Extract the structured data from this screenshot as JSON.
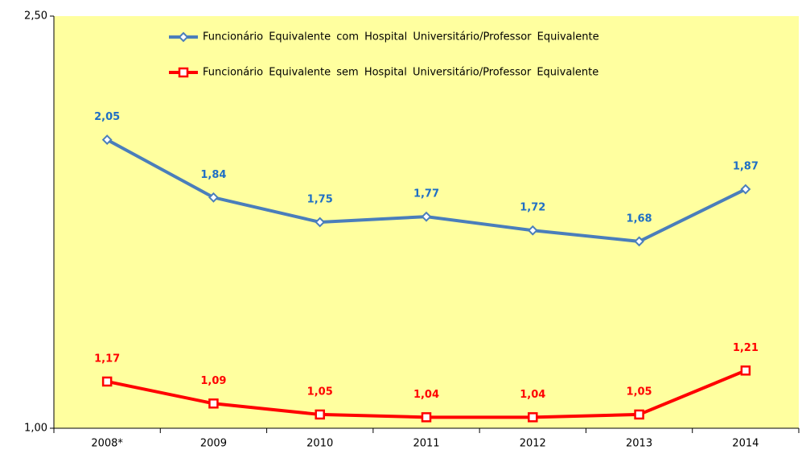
{
  "chart_data": {
    "type": "line",
    "categories": [
      "2008*",
      "2009",
      "2010",
      "2011",
      "2012",
      "2013",
      "2014"
    ],
    "series": [
      {
        "name": "Funcionário Equivalente com Hospital Universitário/Professor Equivalente",
        "color": "#4a7ebb",
        "label_color": "#1f6fc5",
        "marker": "diamond",
        "values": [
          2.05,
          1.84,
          1.75,
          1.77,
          1.72,
          1.68,
          1.87
        ],
        "value_labels": [
          "2,05",
          "1,84",
          "1,75",
          "1,77",
          "1,72",
          "1,68",
          "1,87"
        ]
      },
      {
        "name": "Funcionário Equivalente sem Hospital Universitário/Professor Equivalente",
        "color": "#ff0000",
        "label_color": "#ff0000",
        "marker": "square",
        "values": [
          1.17,
          1.09,
          1.05,
          1.04,
          1.04,
          1.05,
          1.21
        ],
        "value_labels": [
          "1,17",
          "1,09",
          "1,05",
          "1,04",
          "1,04",
          "1,05",
          "1,21"
        ]
      }
    ],
    "ylim": [
      1,
      2.5
    ],
    "yticks": [
      {
        "value": 1,
        "label": "1,00"
      },
      {
        "value": 2.5,
        "label": "2,50"
      }
    ],
    "background": "#ffff9f",
    "legend": "top"
  }
}
